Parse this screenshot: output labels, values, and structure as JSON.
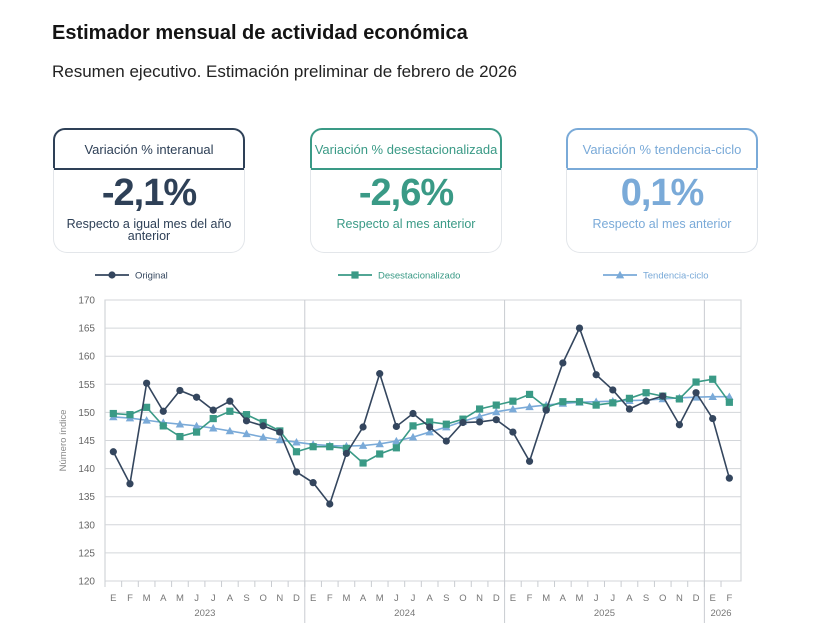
{
  "header": {
    "title": "Estimador mensual de actividad económica",
    "subtitle": "Resumen ejecutivo. Estimación preliminar de febrero de 2026"
  },
  "cards": [
    {
      "label": "Variación % interanual",
      "value": "-2,1%",
      "note": "Respecto a igual mes del año anterior",
      "color": "#2e4057"
    },
    {
      "label": "Variación % desestacionalizada",
      "value": "-2,6%",
      "note": "Respecto al mes anterior",
      "color": "#3a9a86"
    },
    {
      "label": "Variación % tendencia-ciclo",
      "value": "0,1%",
      "note": "Respecto al mes anterior",
      "color": "#7aaad8"
    }
  ],
  "chart_data": {
    "type": "line",
    "ylabel": "Número índice",
    "ylim": [
      120,
      170
    ],
    "yticks": [
      120,
      125,
      130,
      135,
      140,
      145,
      150,
      155,
      160,
      165,
      170
    ],
    "months": [
      "E",
      "F",
      "M",
      "A",
      "M",
      "J",
      "J",
      "A",
      "S",
      "O",
      "N",
      "D",
      "E",
      "F",
      "M",
      "A",
      "M",
      "J",
      "J",
      "A",
      "S",
      "O",
      "N",
      "D",
      "E",
      "F",
      "M",
      "A",
      "M",
      "J",
      "J",
      "A",
      "S",
      "O",
      "N",
      "D",
      "E",
      "F"
    ],
    "years": [
      {
        "label": "2023",
        "start": 0,
        "end": 11
      },
      {
        "label": "2024",
        "start": 12,
        "end": 23
      },
      {
        "label": "2025",
        "start": 24,
        "end": 35
      },
      {
        "label": "2026",
        "start": 36,
        "end": 37
      }
    ],
    "legend_position": "top",
    "series": [
      {
        "name": "Original",
        "color": "#34465e",
        "marker": "circle",
        "values": [
          143.0,
          137.3,
          155.2,
          150.2,
          153.9,
          152.7,
          150.4,
          152.0,
          148.5,
          147.6,
          146.5,
          139.4,
          137.5,
          133.7,
          142.7,
          147.4,
          156.9,
          147.5,
          149.8,
          147.4,
          144.9,
          148.2,
          148.3,
          148.7,
          146.5,
          141.3,
          150.4,
          158.8,
          165.0,
          156.7,
          154.0,
          150.6,
          152.0,
          152.9,
          147.8,
          153.5,
          148.9,
          138.3
        ]
      },
      {
        "name": "Desestacionalizado",
        "color": "#3a9a86",
        "marker": "square",
        "values": [
          149.8,
          149.6,
          150.9,
          147.6,
          145.7,
          146.5,
          148.9,
          150.2,
          149.6,
          148.2,
          146.7,
          143.0,
          143.9,
          143.9,
          143.6,
          141.0,
          142.6,
          143.7,
          147.6,
          148.3,
          147.9,
          148.8,
          150.6,
          151.3,
          152.0,
          153.2,
          150.9,
          151.9,
          151.9,
          151.3,
          151.7,
          152.5,
          153.5,
          152.9,
          152.4,
          155.4,
          155.9,
          151.8
        ]
      },
      {
        "name": "Tendencia-ciclo",
        "color": "#7aaad8",
        "marker": "triangle",
        "values": [
          149.2,
          149.0,
          148.6,
          148.2,
          147.9,
          147.6,
          147.2,
          146.7,
          146.2,
          145.6,
          145.1,
          144.7,
          144.3,
          144.1,
          144.0,
          144.1,
          144.4,
          144.9,
          145.6,
          146.5,
          147.4,
          148.4,
          149.3,
          150.1,
          150.6,
          151.0,
          151.3,
          151.6,
          151.8,
          151.9,
          152.0,
          152.1,
          152.2,
          152.4,
          152.6,
          152.7,
          152.8,
          152.8
        ]
      }
    ]
  }
}
